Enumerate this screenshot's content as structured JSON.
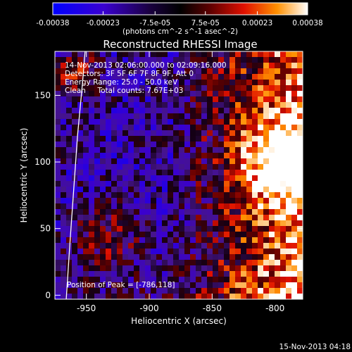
{
  "chart_data": {
    "type": "heatmap",
    "title": "Reconstructed RHESSI Image",
    "xlabel": "Heliocentric X (arcsec)",
    "ylabel": "Heliocentric Y (arcsec)",
    "xlim": [
      -975,
      -778
    ],
    "ylim": [
      -3,
      183
    ],
    "x_ticks": [
      -950,
      -900,
      -850,
      -800
    ],
    "y_ticks": [
      0,
      50,
      100,
      150
    ],
    "colorbar": {
      "unit_label": "(photons cm^-2 s^-1 asec^-2)",
      "range": [
        -0.00038,
        0.00038
      ],
      "ticks": [
        "-0.00038",
        "-0.00023",
        "-7.5e-05",
        "7.5e-05",
        "0.00023",
        "0.00038"
      ]
    },
    "info_lines": [
      "14-Nov-2013 02:06:00.000 to 02:09:16.000",
      "Detectors: 3F 5F 6F 7F 8F 9F, Att 0",
      "Energy Range: 25.0 - 50.0 keV",
      "Clean     Total counts: 7.67E+03"
    ],
    "peak_label": "Position of Peak = [-786,118]",
    "peak_position": [
      -786,
      118
    ],
    "footer_date": "15-Nov-2013 04:18",
    "limb_curve": [
      [
        -966,
        -3
      ],
      [
        -963,
        40
      ],
      [
        -960,
        80
      ],
      [
        -957,
        120
      ],
      [
        -953,
        160
      ],
      [
        -951,
        183
      ]
    ]
  }
}
